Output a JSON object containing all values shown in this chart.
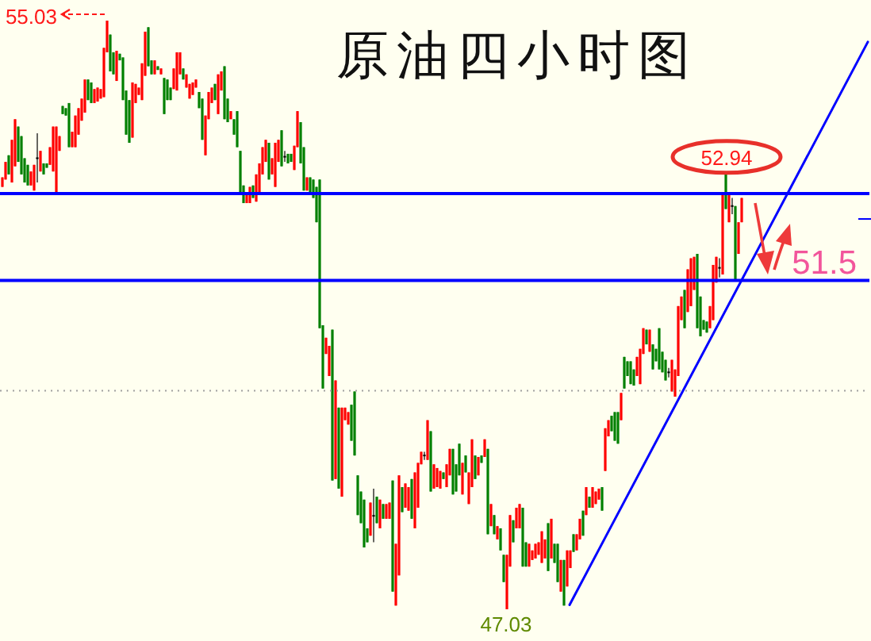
{
  "chart_data": {
    "type": "candlestick",
    "title": "原油四小时图",
    "categories": [
      null,
      null,
      null,
      null,
      null,
      null,
      null,
      null,
      null,
      null,
      null,
      null,
      null,
      null,
      null,
      null,
      null,
      null,
      null,
      null,
      null,
      null,
      null,
      null,
      null,
      null,
      null,
      null,
      null,
      null,
      null,
      null,
      null,
      null,
      null,
      null,
      null,
      null,
      null,
      null,
      null,
      null,
      null,
      null,
      null,
      null,
      null,
      null,
      null,
      null,
      null,
      null,
      null,
      null,
      null,
      null,
      null,
      null,
      null,
      null,
      null,
      null,
      null,
      null,
      null,
      null,
      null,
      null,
      null,
      null,
      null,
      null,
      null,
      null,
      null,
      null,
      null,
      null,
      null,
      null,
      null,
      null,
      null,
      null,
      null,
      null,
      null,
      null,
      null,
      null,
      null,
      null,
      null,
      null,
      null,
      null,
      null,
      null,
      null,
      null,
      null,
      null,
      null,
      null,
      null,
      null,
      null,
      null,
      null,
      null,
      null,
      null,
      null,
      null,
      null,
      null,
      null,
      null,
      null,
      null,
      null,
      null,
      null,
      null,
      null,
      null,
      null,
      null,
      null,
      null,
      null,
      null,
      null,
      null,
      null,
      null,
      null,
      null,
      null,
      null,
      null,
      null,
      null,
      null,
      null,
      null,
      null,
      null,
      null,
      null,
      null,
      null,
      null,
      null,
      null,
      null,
      null,
      null,
      null,
      null,
      null,
      null,
      null,
      null,
      null,
      null,
      null,
      null,
      null,
      null,
      null,
      null,
      null,
      null,
      null,
      null,
      null,
      null,
      null,
      null,
      null,
      null,
      null,
      null,
      null,
      null,
      null,
      null,
      null,
      null,
      null,
      null,
      null,
      null,
      null,
      null,
      null,
      null,
      null,
      null,
      null,
      null,
      null,
      null,
      null,
      null,
      null,
      null,
      null,
      null,
      null,
      null,
      null,
      null,
      null,
      null,
      null,
      null,
      null,
      null,
      null,
      null,
      null,
      null,
      null,
      null,
      null,
      null,
      null,
      null,
      null,
      null,
      null,
      null,
      null,
      null,
      null,
      null,
      null,
      null,
      null,
      null,
      null,
      null,
      null,
      null,
      null,
      null,
      null,
      null,
      null,
      null,
      null,
      null,
      null,
      null,
      null,
      null,
      null,
      null,
      null,
      null,
      null,
      null,
      null,
      null,
      null,
      null,
      null,
      null,
      null,
      null,
      null,
      null
    ],
    "ohlc": [
      [
        52.77,
        52.9,
        52.77,
        52.9
      ],
      [
        52.87,
        53.11,
        52.87,
        53.11
      ],
      [
        53.2,
        53.2,
        52.94,
        52.94
      ],
      [
        52.83,
        53.41,
        52.83,
        53.41
      ],
      [
        53.05,
        53.69,
        53.05,
        53.69
      ],
      [
        53.59,
        53.59,
        53.11,
        53.11
      ],
      [
        53.46,
        53.46,
        52.94,
        52.94
      ],
      [
        53.16,
        53.16,
        52.83,
        52.83
      ],
      [
        53.07,
        53.07,
        52.79,
        52.79
      ],
      [
        52.79,
        52.98,
        52.79,
        52.98
      ],
      [
        52.72,
        53.07,
        52.72,
        53.07
      ],
      [
        53.16,
        53.5,
        52.83,
        53.16
      ],
      [
        52.98,
        53.26,
        52.98,
        53.26
      ],
      [
        53.09,
        53.09,
        52.94,
        52.94
      ],
      [
        53.09,
        53.09,
        53.03,
        53.03
      ],
      [
        53.07,
        53.31,
        53.07,
        53.31
      ],
      [
        52.98,
        53.59,
        52.98,
        53.59
      ],
      [
        52.7,
        53.59,
        52.7,
        53.59
      ],
      [
        53.26,
        53.46,
        53.26,
        53.46
      ],
      [
        53.87,
        53.87,
        53.76,
        53.76
      ],
      [
        53.84,
        53.84,
        53.74,
        53.74
      ],
      [
        53.91,
        53.91,
        53.31,
        53.31
      ],
      [
        53.31,
        53.52,
        53.31,
        53.52
      ],
      [
        53.31,
        53.74,
        53.31,
        53.74
      ],
      [
        53.48,
        53.84,
        53.48,
        53.84
      ],
      [
        53.67,
        53.97,
        53.67,
        53.97
      ],
      [
        53.78,
        54.23,
        53.78,
        54.23
      ],
      [
        54.23,
        54.23,
        53.95,
        53.95
      ],
      [
        54.19,
        54.19,
        53.91,
        53.91
      ],
      [
        53.91,
        54.1,
        53.91,
        54.1
      ],
      [
        53.93,
        54.12,
        53.93,
        54.12
      ],
      [
        53.97,
        54.1,
        53.97,
        54.1
      ],
      [
        53.99,
        54.66,
        53.99,
        54.66
      ],
      [
        54.6,
        55.03,
        54.6,
        55.03
      ],
      [
        54.84,
        54.84,
        54.34,
        54.34
      ],
      [
        54.6,
        54.6,
        54.3,
        54.3
      ],
      [
        54.21,
        54.62,
        54.21,
        54.62
      ],
      [
        54.58,
        54.58,
        54.49,
        54.49
      ],
      [
        54.53,
        54.53,
        53.95,
        53.95
      ],
      [
        54.08,
        54.08,
        53.48,
        53.48
      ],
      [
        53.95,
        53.95,
        53.37,
        53.37
      ],
      [
        53.44,
        54.19,
        53.44,
        54.19
      ],
      [
        53.91,
        54.17,
        53.91,
        54.17
      ],
      [
        54.02,
        54.12,
        54.02,
        54.12
      ],
      [
        53.95,
        54.45,
        53.95,
        54.45
      ],
      [
        54.28,
        54.88,
        54.28,
        54.88
      ],
      [
        54.94,
        54.94,
        54.41,
        54.41
      ],
      [
        54.49,
        54.49,
        54.3,
        54.3
      ],
      [
        54.3,
        54.49,
        54.3,
        54.49
      ],
      [
        54.41,
        54.41,
        54.36,
        54.36
      ],
      [
        54.3,
        54.38,
        54.3,
        54.38
      ],
      [
        54.25,
        54.25,
        53.76,
        53.76
      ],
      [
        54.23,
        54.23,
        53.95,
        53.95
      ],
      [
        54.12,
        54.12,
        53.95,
        53.95
      ],
      [
        54.1,
        54.38,
        54.1,
        54.38
      ],
      [
        54.08,
        54.6,
        54.08,
        54.6
      ],
      [
        54.3,
        54.6,
        54.3,
        54.6
      ],
      [
        54.38,
        54.38,
        54.23,
        54.23
      ],
      [
        54.12,
        54.3,
        54.12,
        54.3
      ],
      [
        53.97,
        54.17,
        53.97,
        54.17
      ],
      [
        54.02,
        54.19,
        54.02,
        54.19
      ],
      [
        54.12,
        54.23,
        54.12,
        54.23
      ],
      [
        54.06,
        54.06,
        53.84,
        53.84
      ],
      [
        53.97,
        53.97,
        53.41,
        53.41
      ],
      [
        53.2,
        53.74,
        53.2,
        53.74
      ],
      [
        53.69,
        54.06,
        53.69,
        54.06
      ],
      [
        53.91,
        54.12,
        53.91,
        54.12
      ],
      [
        54.17,
        54.17,
        53.95,
        53.95
      ],
      [
        53.76,
        54.3,
        53.76,
        54.3
      ],
      [
        54.08,
        54.34,
        54.08,
        54.34
      ],
      [
        54.41,
        54.41,
        53.69,
        53.69
      ],
      [
        53.97,
        53.97,
        53.65,
        53.65
      ],
      [
        53.69,
        53.8,
        53.69,
        53.8
      ],
      [
        53.69,
        53.69,
        53.48,
        53.48
      ],
      [
        53.8,
        53.8,
        53.31,
        53.31
      ],
      [
        53.26,
        53.26,
        52.68,
        52.68
      ],
      [
        52.79,
        52.79,
        52.55,
        52.55
      ],
      [
        52.55,
        52.68,
        52.55,
        52.68
      ],
      [
        52.55,
        52.77,
        52.55,
        52.77
      ],
      [
        52.79,
        52.79,
        52.62,
        52.62
      ],
      [
        52.57,
        52.94,
        52.57,
        52.94
      ],
      [
        52.66,
        53.09,
        52.66,
        53.09
      ],
      [
        52.94,
        53.31,
        52.94,
        53.31
      ],
      [
        53.11,
        53.41,
        53.11,
        53.41
      ],
      [
        53.37,
        53.37,
        52.87,
        52.87
      ],
      [
        52.94,
        53.16,
        52.94,
        53.16
      ],
      [
        52.77,
        53.37,
        52.77,
        53.37
      ],
      [
        53.11,
        53.41,
        53.11,
        53.41
      ],
      [
        53.54,
        53.54,
        53.05,
        53.05
      ],
      [
        53.18,
        53.26,
        53.11,
        53.18
      ],
      [
        53.22,
        53.22,
        53.09,
        53.09
      ],
      [
        53.22,
        53.22,
        53.11,
        53.11
      ],
      [
        53.0,
        53.33,
        53.0,
        53.33
      ],
      [
        53.31,
        53.8,
        53.31,
        53.8
      ],
      [
        53.65,
        53.65,
        53.09,
        53.09
      ],
      [
        53.31,
        53.31,
        52.72,
        52.72
      ],
      [
        52.72,
        52.9,
        52.72,
        52.9
      ],
      [
        52.9,
        52.9,
        52.68,
        52.68
      ],
      [
        52.87,
        52.87,
        52.62,
        52.62
      ],
      [
        52.77,
        52.77,
        52.29,
        52.29
      ],
      [
        52.87,
        52.87,
        50.85,
        50.85
      ],
      [
        50.89,
        50.89,
        50.03,
        50.03
      ],
      [
        50.5,
        50.72,
        50.5,
        50.72
      ],
      [
        50.2,
        50.61,
        50.2,
        50.61
      ],
      [
        50.83,
        50.83,
        48.78,
        48.78
      ],
      [
        48.8,
        50.14,
        48.8,
        50.14
      ],
      [
        49.77,
        49.77,
        48.67,
        48.67
      ],
      [
        48.56,
        49.77,
        48.56,
        49.77
      ],
      [
        49.6,
        49.77,
        49.6,
        49.77
      ],
      [
        49.54,
        49.71,
        49.54,
        49.71
      ],
      [
        49.81,
        49.81,
        49.32,
        49.32
      ],
      [
        49.99,
        49.99,
        49.12,
        49.12
      ],
      [
        48.85,
        48.85,
        48.31,
        48.31
      ],
      [
        48.63,
        48.63,
        48.2,
        48.2
      ],
      [
        48.52,
        48.52,
        47.87,
        47.87
      ],
      [
        48.13,
        48.13,
        47.94,
        47.94
      ],
      [
        48.03,
        48.48,
        48.03,
        48.48
      ],
      [
        48.3,
        48.67,
        47.94,
        48.3
      ],
      [
        48.56,
        48.56,
        48.2,
        48.2
      ],
      [
        48.13,
        48.52,
        48.13,
        48.52
      ],
      [
        48.46,
        48.46,
        48.26,
        48.26
      ],
      [
        48.26,
        48.46,
        48.26,
        48.46
      ],
      [
        48.26,
        48.48,
        48.26,
        48.48
      ],
      [
        48.78,
        48.78,
        47.27,
        47.27
      ],
      [
        47.08,
        47.92,
        47.08,
        47.92
      ],
      [
        47.49,
        48.85,
        47.49,
        48.85
      ],
      [
        48.69,
        48.69,
        48.35,
        48.35
      ],
      [
        48.41,
        48.74,
        48.41,
        48.74
      ],
      [
        48.37,
        48.69,
        48.37,
        48.69
      ],
      [
        48.8,
        48.8,
        48.26,
        48.26
      ],
      [
        48.13,
        48.89,
        48.13,
        48.89
      ],
      [
        48.41,
        49.02,
        48.41,
        49.02
      ],
      [
        49.0,
        49.17,
        49.0,
        49.17
      ],
      [
        49.12,
        49.17,
        49.06,
        49.12
      ],
      [
        49.06,
        49.6,
        49.06,
        49.6
      ],
      [
        49.45,
        49.45,
        48.63,
        48.63
      ],
      [
        48.67,
        49.0,
        48.67,
        49.0
      ],
      [
        48.69,
        48.95,
        48.69,
        48.95
      ],
      [
        48.67,
        48.91,
        48.67,
        48.91
      ],
      [
        48.89,
        48.89,
        48.8,
        48.8
      ],
      [
        48.69,
        49.0,
        48.69,
        49.0
      ],
      [
        48.85,
        49.21,
        48.85,
        49.21
      ],
      [
        49.21,
        49.21,
        48.59,
        48.59
      ],
      [
        49.0,
        49.0,
        48.63,
        48.63
      ],
      [
        49.28,
        49.28,
        48.85,
        48.85
      ],
      [
        48.59,
        49.02,
        48.59,
        49.02
      ],
      [
        49.12,
        49.12,
        48.89,
        48.89
      ],
      [
        48.46,
        48.89,
        48.46,
        48.89
      ],
      [
        48.69,
        49.34,
        48.69,
        49.34
      ],
      [
        49.12,
        49.12,
        48.8,
        48.8
      ],
      [
        48.85,
        49.1,
        48.85,
        49.1
      ],
      [
        49.12,
        49.12,
        49.02,
        49.02
      ],
      [
        49.1,
        49.34,
        49.1,
        49.34
      ],
      [
        49.21,
        49.21,
        48.05,
        48.05
      ],
      [
        48.16,
        48.46,
        48.16,
        48.46
      ],
      [
        48.31,
        48.31,
        48.05,
        48.05
      ],
      [
        47.98,
        48.16,
        47.98,
        48.16
      ],
      [
        48.13,
        48.13,
        47.83,
        47.83
      ],
      [
        47.77,
        47.77,
        47.4,
        47.4
      ],
      [
        47.03,
        47.77,
        47.03,
        47.77
      ],
      [
        47.61,
        48.31,
        47.61,
        48.31
      ],
      [
        48.24,
        48.24,
        47.94,
        47.94
      ],
      [
        48.13,
        48.41,
        48.13,
        48.41
      ],
      [
        48.13,
        48.46,
        48.13,
        48.46
      ],
      [
        48.41,
        48.41,
        47.61,
        47.61
      ],
      [
        47.94,
        47.94,
        47.61,
        47.61
      ],
      [
        47.61,
        47.92,
        47.61,
        47.92
      ],
      [
        47.7,
        47.83,
        47.7,
        47.83
      ],
      [
        47.72,
        47.92,
        47.72,
        47.92
      ],
      [
        47.77,
        47.94,
        47.77,
        47.94
      ],
      [
        47.66,
        48.09,
        47.66,
        48.09
      ],
      [
        47.72,
        47.98,
        47.72,
        47.98
      ],
      [
        48.2,
        48.2,
        47.55,
        47.55
      ],
      [
        47.72,
        48.26,
        47.72,
        48.26
      ],
      [
        47.92,
        47.92,
        47.66,
        47.66
      ],
      [
        47.92,
        47.92,
        47.4,
        47.4
      ],
      [
        47.27,
        47.7,
        47.27,
        47.7
      ],
      [
        47.7,
        47.7,
        47.08,
        47.08
      ],
      [
        47.34,
        47.83,
        47.34,
        47.83
      ],
      [
        47.59,
        47.83,
        47.59,
        47.83
      ],
      [
        48.05,
        48.05,
        47.81,
        47.81
      ],
      [
        47.83,
        48.05,
        47.83,
        48.05
      ],
      [
        47.98,
        48.26,
        47.98,
        48.26
      ],
      [
        48.37,
        48.37,
        48.03,
        48.03
      ],
      [
        48.31,
        48.69,
        48.31,
        48.69
      ],
      [
        48.56,
        48.56,
        48.41,
        48.41
      ],
      [
        48.41,
        48.69,
        48.41,
        48.69
      ],
      [
        48.46,
        48.63,
        48.46,
        48.63
      ],
      [
        48.52,
        48.67,
        48.52,
        48.67
      ],
      [
        48.69,
        48.69,
        48.37,
        48.37
      ],
      [
        48.91,
        49.49,
        48.91,
        49.49
      ],
      [
        49.38,
        49.6,
        49.38,
        49.6
      ],
      [
        49.66,
        49.66,
        49.45,
        49.45
      ],
      [
        49.71,
        49.71,
        49.32,
        49.32
      ],
      [
        49.71,
        49.71,
        49.28,
        49.28
      ],
      [
        49.6,
        49.97,
        49.6,
        49.97
      ],
      [
        50.46,
        50.46,
        50.03,
        50.03
      ],
      [
        50.4,
        50.4,
        50.2,
        50.2
      ],
      [
        50.4,
        50.4,
        50.09,
        50.09
      ],
      [
        50.29,
        50.29,
        50.07,
        50.07
      ],
      [
        50.2,
        50.46,
        50.2,
        50.46
      ],
      [
        50.09,
        50.57,
        50.09,
        50.57
      ],
      [
        50.5,
        50.85,
        50.5,
        50.85
      ],
      [
        50.83,
        50.83,
        50.63,
        50.63
      ],
      [
        50.53,
        50.83,
        50.53,
        50.83
      ],
      [
        50.63,
        50.63,
        50.29,
        50.29
      ],
      [
        50.57,
        50.57,
        50.4,
        50.4
      ],
      [
        50.85,
        50.85,
        50.29,
        50.29
      ],
      [
        50.53,
        50.53,
        50.25,
        50.25
      ],
      [
        50.42,
        50.42,
        50.14,
        50.14
      ],
      [
        50.25,
        50.31,
        50.18,
        50.25
      ],
      [
        49.99,
        50.42,
        49.99,
        50.42
      ],
      [
        49.92,
        50.29,
        49.92,
        50.29
      ],
      [
        50.2,
        51.15,
        50.2,
        51.15
      ],
      [
        50.96,
        51.28,
        50.96,
        51.28
      ],
      [
        51.37,
        51.37,
        50.85,
        50.85
      ],
      [
        51.07,
        51.65,
        51.07,
        51.65
      ],
      [
        51.15,
        51.8,
        51.15,
        51.8
      ],
      [
        51.37,
        51.82,
        51.37,
        51.82
      ],
      [
        51.86,
        51.86,
        50.85,
        50.85
      ],
      [
        51.28,
        51.28,
        50.74,
        50.74
      ],
      [
        50.96,
        50.96,
        50.83,
        50.83
      ],
      [
        50.94,
        50.94,
        50.79,
        50.79
      ],
      [
        50.85,
        51.15,
        50.85,
        51.15
      ],
      [
        50.96,
        51.71,
        50.96,
        51.71
      ],
      [
        51.47,
        51.82,
        51.47,
        51.82
      ],
      [
        51.67,
        51.8,
        51.54,
        51.67
      ],
      [
        51.58,
        52.68,
        51.58,
        52.68
      ],
      [
        52.94,
        52.94,
        52.47,
        52.47
      ],
      [
        52.29,
        52.68,
        52.29,
        52.68
      ],
      [
        52.51,
        52.62,
        52.4,
        52.51
      ],
      [
        52.51,
        52.51,
        51.5,
        51.5
      ],
      [
        51.86,
        52.29,
        51.86,
        52.29
      ],
      [
        52.29,
        52.62,
        52.29,
        52.62
      ],
      null,
      null,
      null,
      null,
      null,
      null,
      null,
      null,
      null,
      null,
      null,
      null,
      null,
      null,
      null,
      null,
      null,
      null,
      null,
      null,
      null,
      null,
      null,
      null,
      null,
      null,
      null,
      null,
      null,
      null,
      null,
      null,
      null,
      null,
      null,
      null,
      null,
      null,
      null,
      null
    ],
    "colors": [
      "#ff0000",
      "#ff0000",
      "#008000",
      "#ff0000",
      "#ff0000",
      "#008000",
      "#008000",
      "#008000",
      "#008000",
      "#ff0000",
      "#ff0000",
      "#000000",
      "#ff0000",
      "#008000",
      "#008000",
      "#ff0000",
      "#ff0000",
      "#ff0000",
      "#ff0000",
      "#008000",
      "#008000",
      "#008000",
      "#ff0000",
      "#ff0000",
      "#ff0000",
      "#ff0000",
      "#ff0000",
      "#008000",
      "#008000",
      "#ff0000",
      "#ff0000",
      "#ff0000",
      "#ff0000",
      "#ff0000",
      "#008000",
      "#008000",
      "#ff0000",
      "#008000",
      "#008000",
      "#008000",
      "#008000",
      "#ff0000",
      "#ff0000",
      "#ff0000",
      "#ff0000",
      "#ff0000",
      "#008000",
      "#008000",
      "#ff0000",
      "#008000",
      "#ff0000",
      "#008000",
      "#008000",
      "#008000",
      "#ff0000",
      "#ff0000",
      "#ff0000",
      "#008000",
      "#ff0000",
      "#ff0000",
      "#ff0000",
      "#ff0000",
      "#008000",
      "#008000",
      "#ff0000",
      "#ff0000",
      "#ff0000",
      "#008000",
      "#ff0000",
      "#ff0000",
      "#008000",
      "#008000",
      "#ff0000",
      "#008000",
      "#008000",
      "#008000",
      "#008000",
      "#ff0000",
      "#ff0000",
      "#008000",
      "#ff0000",
      "#ff0000",
      "#ff0000",
      "#ff0000",
      "#008000",
      "#ff0000",
      "#ff0000",
      "#ff0000",
      "#008000",
      "#000000",
      "#008000",
      "#008000",
      "#ff0000",
      "#ff0000",
      "#008000",
      "#008000",
      "#ff0000",
      "#008000",
      "#008000",
      "#008000",
      "#008000",
      "#008000",
      "#ff0000",
      "#ff0000",
      "#008000",
      "#ff0000",
      "#008000",
      "#ff0000",
      "#ff0000",
      "#ff0000",
      "#008000",
      "#008000",
      "#008000",
      "#008000",
      "#008000",
      "#008000",
      "#ff0000",
      "#000000",
      "#008000",
      "#ff0000",
      "#008000",
      "#ff0000",
      "#ff0000",
      "#008000",
      "#ff0000",
      "#ff0000",
      "#008000",
      "#ff0000",
      "#ff0000",
      "#008000",
      "#ff0000",
      "#ff0000",
      "#ff0000",
      "#000000",
      "#ff0000",
      "#008000",
      "#ff0000",
      "#ff0000",
      "#ff0000",
      "#008000",
      "#ff0000",
      "#ff0000",
      "#008000",
      "#008000",
      "#008000",
      "#ff0000",
      "#008000",
      "#ff0000",
      "#ff0000",
      "#008000",
      "#ff0000",
      "#008000",
      "#ff0000",
      "#008000",
      "#ff0000",
      "#008000",
      "#ff0000",
      "#008000",
      "#008000",
      "#ff0000",
      "#ff0000",
      "#008000",
      "#ff0000",
      "#ff0000",
      "#008000",
      "#008000",
      "#ff0000",
      "#ff0000",
      "#ff0000",
      "#ff0000",
      "#ff0000",
      "#ff0000",
      "#008000",
      "#ff0000",
      "#008000",
      "#008000",
      "#ff0000",
      "#008000",
      "#ff0000",
      "#ff0000",
      "#008000",
      "#ff0000",
      "#ff0000",
      "#008000",
      "#ff0000",
      "#008000",
      "#ff0000",
      "#ff0000",
      "#ff0000",
      "#008000",
      "#ff0000",
      "#ff0000",
      "#008000",
      "#008000",
      "#008000",
      "#ff0000",
      "#008000",
      "#008000",
      "#008000",
      "#008000",
      "#ff0000",
      "#ff0000",
      "#ff0000",
      "#008000",
      "#ff0000",
      "#008000",
      "#008000",
      "#008000",
      "#008000",
      "#008000",
      "#000000",
      "#ff0000",
      "#ff0000",
      "#ff0000",
      "#ff0000",
      "#008000",
      "#ff0000",
      "#ff0000",
      "#ff0000",
      "#008000",
      "#008000",
      "#008000",
      "#008000",
      "#ff0000",
      "#ff0000",
      "#ff0000",
      "#000000",
      "#ff0000",
      "#008000",
      "#ff0000",
      "#000000",
      "#008000",
      "#ff0000",
      "#ff0000",
      null,
      null,
      null,
      null,
      null,
      null,
      null,
      null,
      null,
      null,
      null,
      null,
      null,
      null,
      null,
      null,
      null,
      null,
      null,
      null,
      null,
      null,
      null,
      null,
      null,
      null,
      null,
      null,
      null,
      null,
      null,
      null,
      null,
      null,
      null,
      null,
      null,
      null,
      null,
      null
    ],
    "series": [
      {
        "type": "line",
        "color": "#0000ff",
        "values": [
          null,
          null,
          null,
          null,
          null,
          null,
          null,
          null,
          null,
          null,
          null,
          null,
          null,
          null,
          null,
          null,
          null,
          null,
          null,
          null,
          null,
          null,
          null,
          null,
          null,
          null,
          null,
          null,
          null,
          null,
          null,
          null,
          null,
          null,
          null,
          null,
          null,
          null,
          null,
          null,
          null,
          null,
          null,
          null,
          null,
          null,
          null,
          null,
          null,
          null,
          null,
          null,
          null,
          null,
          null,
          null,
          null,
          null,
          null,
          null,
          null,
          null,
          null,
          null,
          null,
          null,
          null,
          null,
          null,
          null,
          null,
          null,
          null,
          null,
          null,
          null,
          null,
          null,
          null,
          null,
          null,
          null,
          null,
          null,
          null,
          null,
          null,
          null,
          null,
          null,
          null,
          null,
          null,
          null,
          null,
          null,
          null,
          null,
          null,
          null,
          null,
          null,
          null,
          null,
          null,
          null,
          null,
          null,
          null,
          null,
          null,
          null,
          null,
          null,
          null,
          null,
          null,
          null,
          null,
          null,
          null,
          null,
          null,
          null,
          null,
          null,
          null,
          null,
          null,
          null,
          null,
          null,
          null,
          null,
          null,
          null,
          null,
          null,
          null,
          null,
          null,
          null,
          null,
          null,
          null,
          null,
          null,
          null,
          null,
          null,
          null,
          null,
          null,
          null,
          null,
          null,
          null,
          null,
          null,
          null,
          null,
          null,
          null,
          null,
          null,
          null,
          null,
          null,
          null,
          null,
          null,
          null,
          null,
          null,
          null,
          null,
          null,
          null,
          null,
          47.09,
          null,
          null,
          null,
          null,
          null,
          null,
          null,
          null,
          null,
          null,
          null,
          null,
          null,
          null,
          null,
          null,
          null,
          null,
          null,
          null,
          null,
          null,
          null,
          null,
          null,
          null,
          null,
          null,
          null,
          null,
          null,
          null,
          null,
          null,
          null,
          null,
          null,
          null,
          null,
          null,
          null,
          null,
          null,
          null,
          null,
          null,
          null,
          null,
          null,
          null,
          null,
          null,
          null,
          null,
          null,
          null,
          null,
          null,
          null,
          null,
          null,
          null,
          null,
          null,
          null,
          null,
          null,
          null,
          null,
          null,
          null,
          null,
          null,
          null,
          null,
          null,
          null,
          null,
          null,
          null,
          null,
          null,
          null,
          null,
          null,
          null,
          null,
          null,
          null,
          null,
          null,
          null,
          null,
          54.74
        ]
      }
    ],
    "ref_lines": [
      {
        "axis": "y",
        "value": 52.68,
        "label": null,
        "color": "#0000ff"
      },
      {
        "axis": "y",
        "value": 51.5,
        "label": "51.5",
        "color": "#0000ff"
      },
      {
        "axis": "y",
        "value": 50,
        "label": null,
        "color": "#a0a0a0",
        "line_style": "dotted"
      }
    ],
    "annotations": [
      "55.03",
      {
        "text": "52.94",
        "y": 52.94
      },
      {
        "text": "47.03",
        "y": 47.03
      }
    ],
    "tick_labels": false
  }
}
